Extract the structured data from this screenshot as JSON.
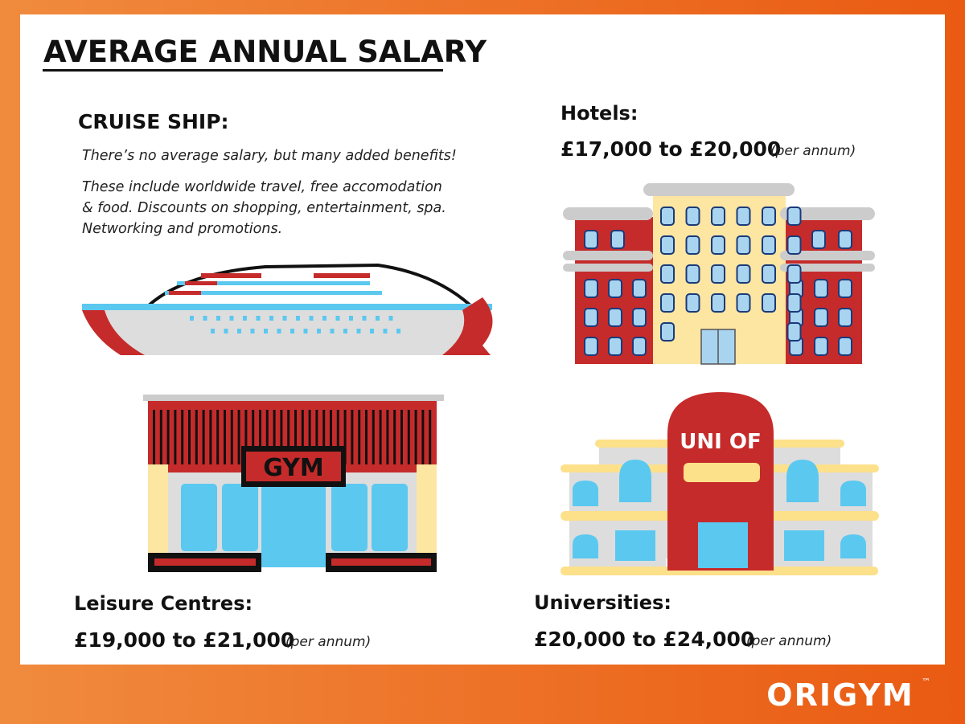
{
  "header": {
    "title": "AVERAGE ANNUAL SALARY"
  },
  "sections": [
    {
      "label": "CRUISE SHIP:",
      "text": [
        "There’s no average salary, but many added benefits!",
        "These include worldwide travel, free accomodation",
        "& food. Discounts on shopping, entertainment, spa.",
        "Networking and promotions."
      ]
    },
    {
      "label": "Hotels:",
      "salary": "£17,000 to £20,000",
      "note": "(per annum)"
    },
    {
      "label": "Leisure Centres:",
      "salary": "£19,000 to £21,000",
      "note": "(per annum)"
    },
    {
      "label": "Universities:",
      "salary": "£20,000 to £24,000",
      "note": "(per annum)"
    }
  ],
  "illustrations": {
    "gym_sign": "GYM",
    "uni_sign": "UNI OF"
  },
  "footer": {
    "logo": "ORIGYM",
    "trademark": "™"
  }
}
